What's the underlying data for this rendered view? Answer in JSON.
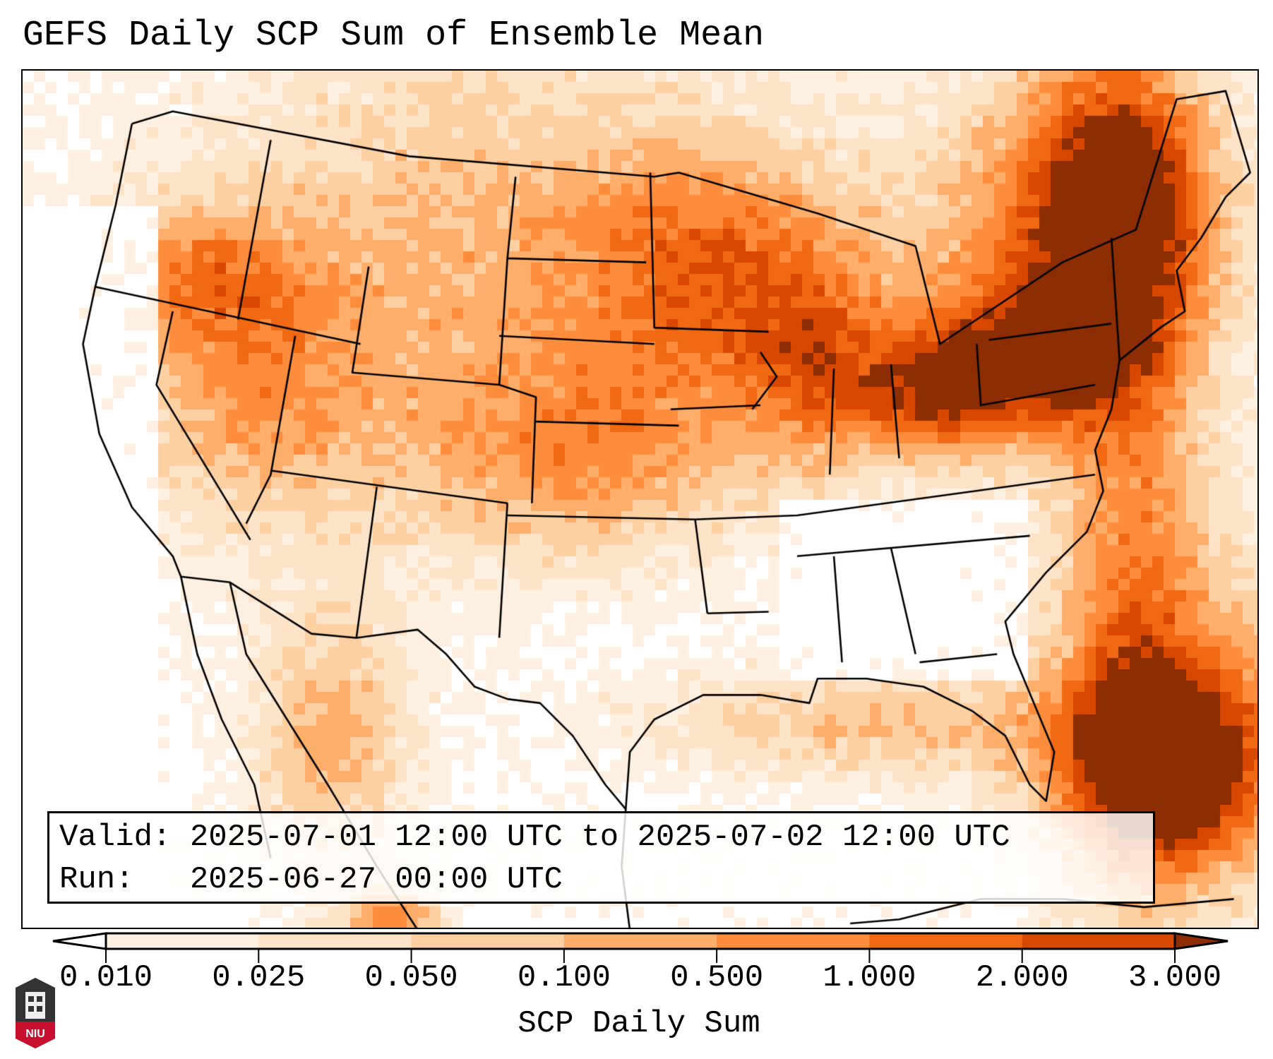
{
  "chart_data": {
    "type": "heatmap",
    "title": "GEFS Daily SCP Sum of Ensemble Mean",
    "colorbar_label": "SCP Daily Sum",
    "colorbar_ticks": [
      "0.010",
      "0.025",
      "0.050",
      "0.100",
      "0.500",
      "1.000",
      "2.000",
      "3.000"
    ],
    "levels": [
      0.01,
      0.025,
      0.05,
      0.1,
      0.5,
      1.0,
      2.0,
      3.0
    ],
    "colors": [
      "#fef0e1",
      "#fde3c8",
      "#fdd0a2",
      "#fdae6b",
      "#fd8d3c",
      "#f16913",
      "#d94801"
    ],
    "under_color": "#ffffff",
    "over_color": "#8c2d04",
    "extend": "both",
    "region": "Continental United States"
  },
  "legend": {
    "valid_line": "Valid: 2025-07-01 12:00 UTC to 2025-07-02 12:00 UTC",
    "run_line": "Run:   2025-06-27 00:00 UTC"
  },
  "logo": {
    "text": "NIU"
  }
}
